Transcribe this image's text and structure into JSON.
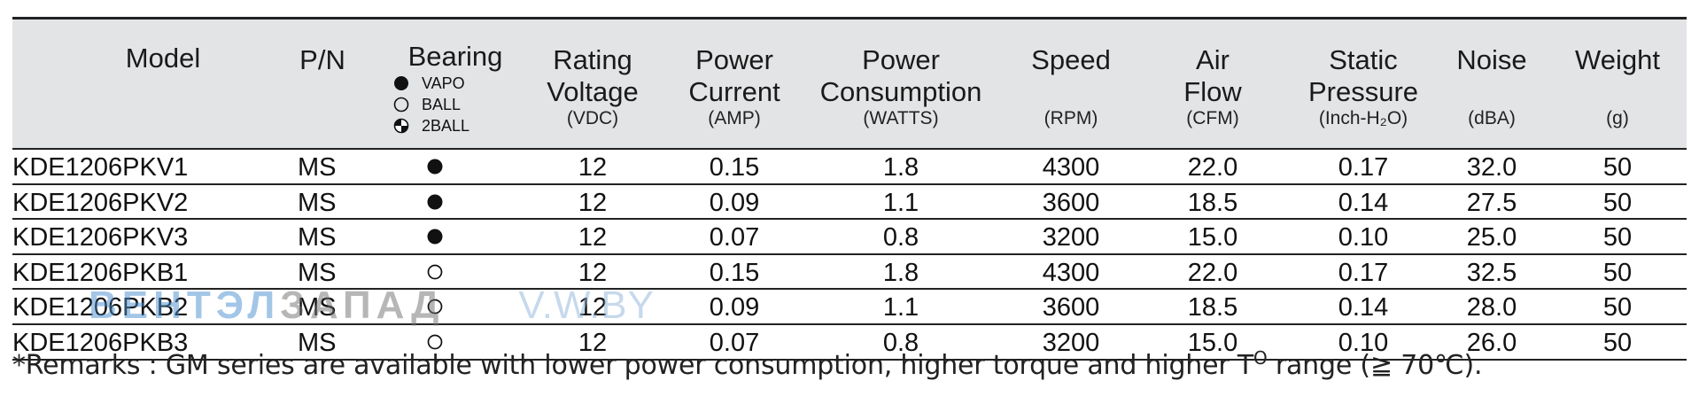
{
  "table": {
    "headers": {
      "model": "Model",
      "pn": "P/N",
      "bearing": "Bearing",
      "rating_voltage": [
        "Rating",
        "Voltage"
      ],
      "power_current": [
        "Power",
        "Current"
      ],
      "power_consumption": [
        "Power",
        "Consumption"
      ],
      "speed": "Speed",
      "air_flow": [
        "Air",
        "Flow"
      ],
      "static_pressure": [
        "Static",
        "Pressure"
      ],
      "noise": "Noise",
      "weight": "Weight"
    },
    "units": {
      "rating_voltage": "(VDC)",
      "power_current": "(AMP)",
      "power_consumption": "(WATTS)",
      "speed": "(RPM)",
      "air_flow": "(CFM)",
      "static_pressure": "(Inch-H₂O)",
      "noise": "(dBA)",
      "weight": "(g)"
    },
    "bearing_legend": [
      {
        "type": "vapo",
        "label": "VAPO"
      },
      {
        "type": "ball",
        "label": "BALL"
      },
      {
        "type": "2ball",
        "label": "2BALL"
      }
    ],
    "rows": [
      {
        "model": "KDE1206PKV1",
        "pn": "MS",
        "bearing": "vapo",
        "voltage": "12",
        "current": "0.15",
        "consumption": "1.8",
        "speed": "4300",
        "air_flow": "22.0",
        "static_pressure": "0.17",
        "noise": "32.0",
        "weight": "50"
      },
      {
        "model": "KDE1206PKV2",
        "pn": "MS",
        "bearing": "vapo",
        "voltage": "12",
        "current": "0.09",
        "consumption": "1.1",
        "speed": "3600",
        "air_flow": "18.5",
        "static_pressure": "0.14",
        "noise": "27.5",
        "weight": "50"
      },
      {
        "model": "KDE1206PKV3",
        "pn": "MS",
        "bearing": "vapo",
        "voltage": "12",
        "current": "0.07",
        "consumption": "0.8",
        "speed": "3200",
        "air_flow": "15.0",
        "static_pressure": "0.10",
        "noise": "25.0",
        "weight": "50"
      },
      {
        "model": "KDE1206PKB1",
        "pn": "MS",
        "bearing": "ball",
        "voltage": "12",
        "current": "0.15",
        "consumption": "1.8",
        "speed": "4300",
        "air_flow": "22.0",
        "static_pressure": "0.17",
        "noise": "32.5",
        "weight": "50"
      },
      {
        "model": "KDE1206PKB2",
        "pn": "MS",
        "bearing": "ball",
        "voltage": "12",
        "current": "0.09",
        "consumption": "1.1",
        "speed": "3600",
        "air_flow": "18.5",
        "static_pressure": "0.14",
        "noise": "28.0",
        "weight": "50"
      },
      {
        "model": "KDE1206PKB3",
        "pn": "MS",
        "bearing": "ball",
        "voltage": "12",
        "current": "0.07",
        "consumption": "0.8",
        "speed": "3200",
        "air_flow": "15.0",
        "static_pressure": "0.10",
        "noise": "26.0",
        "weight": "50"
      }
    ]
  },
  "remark": {
    "prefix": "*Remarks : GM series are available with lower power consumption, higher torque and higher T",
    "sup": "O",
    "suffix": " range (≧ 70℃)."
  },
  "watermark": {
    "part1": "ВЕНТЭЛ",
    "part2": "ЗАПАД",
    "part3": "V.W.BY"
  }
}
